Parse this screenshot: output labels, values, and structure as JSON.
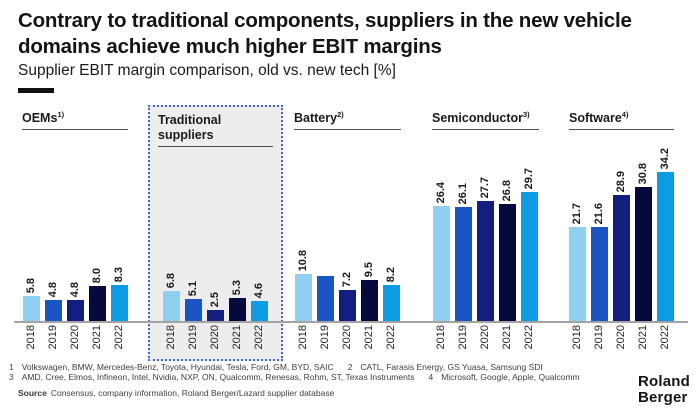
{
  "title_lines": [
    "Contrary to traditional components, suppliers in the new vehicle",
    "domains achieve much higher EBIT margins"
  ],
  "subtitle": "Supplier EBIT margin comparison, old vs. new tech [%]",
  "chart_data": {
    "type": "bar",
    "unit": "%",
    "x": [
      "2018",
      "2019",
      "2020",
      "2021",
      "2022"
    ],
    "series_colors": [
      "#8FD0F1",
      "#1A55C3",
      "#131E7F",
      "#05093B",
      "#0D9BE4"
    ],
    "ylim": [
      0,
      35
    ],
    "grid": false,
    "legend": "none",
    "value_label_style": "rotated 90deg above each bar",
    "groups": [
      {
        "label": "OEMs",
        "ref": "1)",
        "highlighted": false,
        "values": [
          5.8,
          4.8,
          4.8,
          8.0,
          8.3
        ],
        "labels": [
          "5.8",
          "4.8",
          "4.8",
          "8.0",
          "8.3"
        ]
      },
      {
        "label": "Traditional suppliers",
        "ref": "",
        "highlighted": true,
        "values": [
          6.8,
          5.1,
          2.5,
          5.3,
          4.6
        ],
        "labels": [
          "6.8",
          "5.1",
          "2.5",
          "5.3",
          "4.6"
        ]
      },
      {
        "label": "Battery",
        "ref": "2)",
        "highlighted": false,
        "values": [
          10.8,
          10.4,
          7.2,
          9.5,
          8.2
        ],
        "labels": [
          "10.8",
          "",
          "7.2",
          "9.5",
          "8.2"
        ]
      },
      {
        "label": "Semiconductor",
        "ref": "3)",
        "highlighted": false,
        "values": [
          26.4,
          26.1,
          27.7,
          26.8,
          29.7
        ],
        "labels": [
          "26.4",
          "26.1",
          "27.7",
          "26.8",
          "29.7"
        ]
      },
      {
        "label": "Software",
        "ref": "4)",
        "highlighted": false,
        "values": [
          21.7,
          21.6,
          28.9,
          30.8,
          34.2
        ],
        "labels": [
          "21.7",
          "21.6",
          "28.9",
          "30.8",
          "34.2"
        ]
      }
    ]
  },
  "footnotes": [
    {
      "num": "1",
      "text": "Volkswagen, BMW, Mercedes-Benz, Toyota, Hyundai, Tesla, Ford, GM, BYD, SAIC"
    },
    {
      "num": "2",
      "text": "CATL, Farasis Energy, GS Yuasa, Samsung SDI"
    },
    {
      "num": "3",
      "text": "AMD, Cree, Elmos, Infineon, Intel, Nvidia, NXP, ON, Qualcomm, Renesas, Rohm, ST, Texas Instruments"
    },
    {
      "num": "4",
      "text": "Microsoft, Google, Apple, Qualcomm"
    }
  ],
  "source": {
    "label": "Source",
    "text": "Consensus, company information, Roland Berger/Lazard supplier database"
  },
  "logo": {
    "line1": "Roland",
    "line2": "Berger"
  },
  "colors": {
    "accent_dash": "#111111",
    "highlight_box_fill": "#EDEDED",
    "highlight_box_border": "#4169C8",
    "header_underline": "#4D4D4D",
    "baseline": "#A3A3A3"
  }
}
